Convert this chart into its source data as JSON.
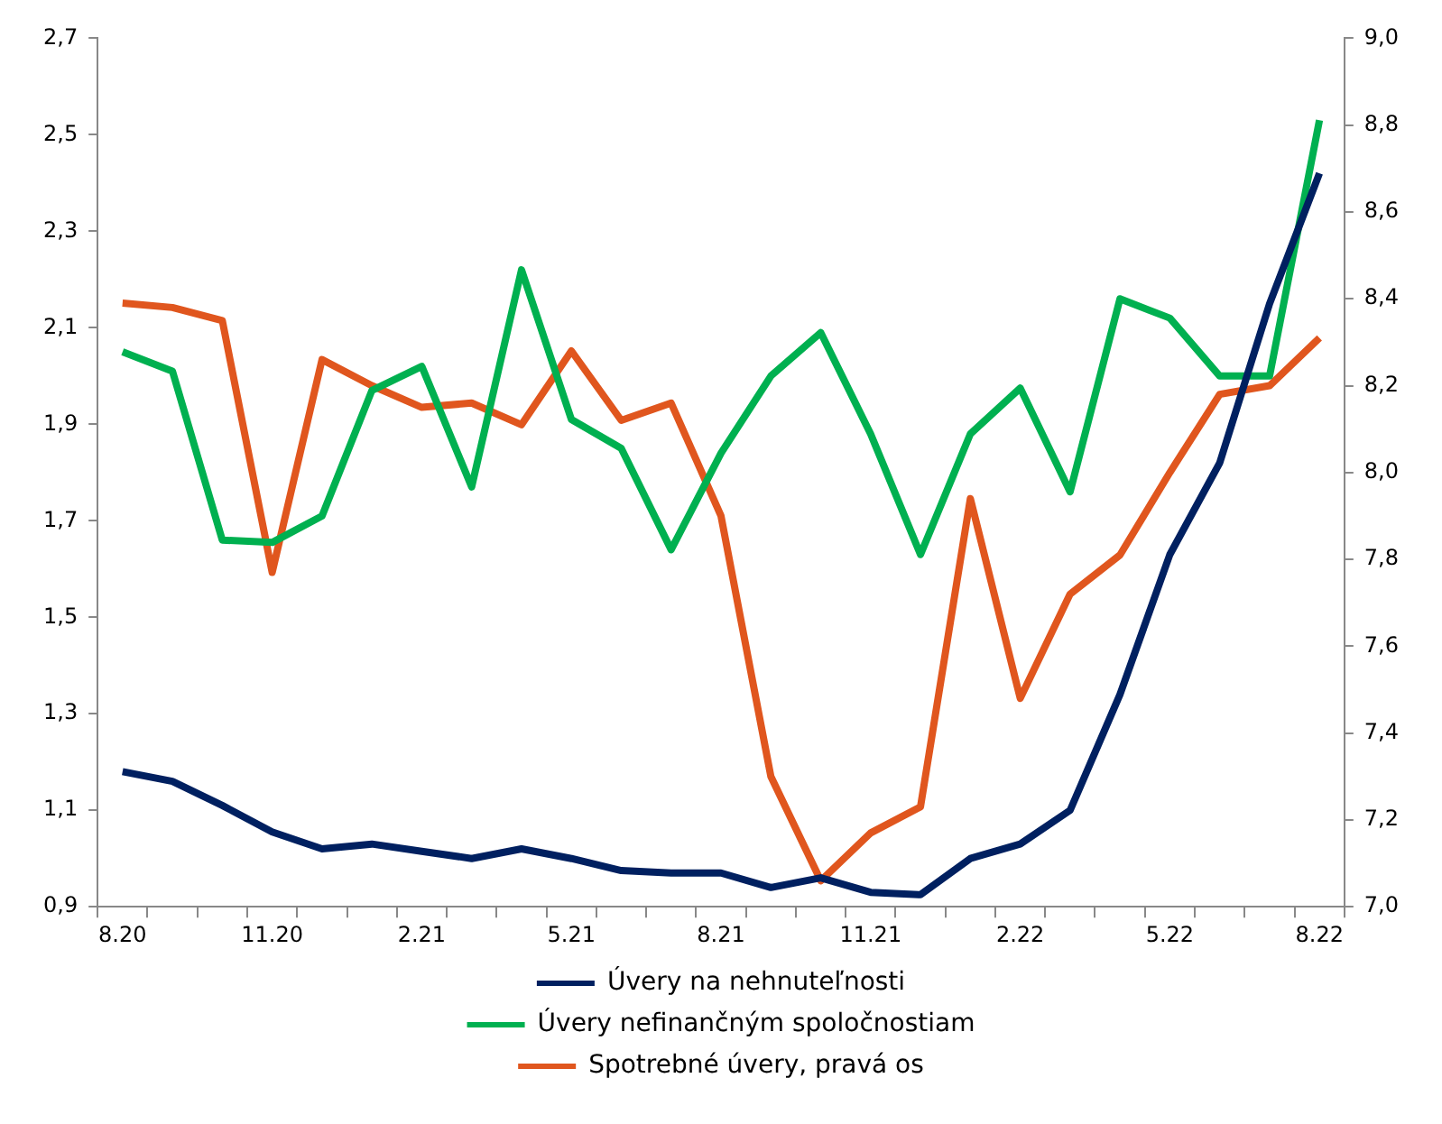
{
  "chart_data": {
    "type": "line",
    "categories": [
      "8.20",
      null,
      null,
      "11.20",
      null,
      null,
      "2.21",
      null,
      null,
      "5.21",
      null,
      null,
      "8.21",
      null,
      null,
      "11.21",
      null,
      null,
      "2.22",
      null,
      null,
      "5.22",
      null,
      null,
      "8.22"
    ],
    "series": [
      {
        "name": "Úvery na nehnuteľnosti",
        "color": "#002060",
        "values": [
          1.18,
          1.16,
          1.11,
          1.055,
          1.02,
          1.03,
          1.015,
          1.0,
          1.02,
          1.0,
          0.975,
          0.97,
          0.97,
          0.94,
          0.96,
          0.93,
          0.925,
          1.0,
          1.03,
          1.1,
          1.34,
          1.63,
          1.82,
          2.15,
          2.42
        ]
      },
      {
        "name": "Úvery nefinančným spoločnostiam",
        "color": "#00b050",
        "values": [
          2.05,
          2.01,
          1.66,
          1.655,
          1.71,
          1.97,
          2.02,
          1.77,
          2.22,
          1.91,
          1.85,
          1.64,
          1.84,
          2.0,
          2.09,
          1.88,
          1.63,
          1.88,
          1.975,
          1.76,
          2.16,
          2.12,
          2.0,
          2.0,
          2.53
        ]
      },
      {
        "name": "Spotrebné úvery, pravá os",
        "color": "#e0561e",
        "axis": "y2",
        "values": [
          8.39,
          8.38,
          8.35,
          7.77,
          8.26,
          8.2,
          8.15,
          8.16,
          8.11,
          8.28,
          8.12,
          8.16,
          7.9,
          7.3,
          7.06,
          7.17,
          7.23,
          7.94,
          7.48,
          7.72,
          7.81,
          8.0,
          8.18,
          8.2,
          8.31
        ]
      }
    ],
    "ylim": [
      0.9,
      2.7
    ],
    "yticks": [
      {
        "value": 0.9,
        "label": "0,9"
      },
      {
        "value": 1.1,
        "label": "1,1"
      },
      {
        "value": 1.3,
        "label": "1,3"
      },
      {
        "value": 1.5,
        "label": "1,5"
      },
      {
        "value": 1.7,
        "label": "1,7"
      },
      {
        "value": 1.9,
        "label": "1,9"
      },
      {
        "value": 2.1,
        "label": "2,1"
      },
      {
        "value": 2.3,
        "label": "2,3"
      },
      {
        "value": 2.5,
        "label": "2,5"
      },
      {
        "value": 2.7,
        "label": "2,7"
      }
    ],
    "y2lim": [
      7.0,
      9.0
    ],
    "y2ticks": [
      {
        "value": 7.0,
        "label": "7,0"
      },
      {
        "value": 7.2,
        "label": "7,2"
      },
      {
        "value": 7.4,
        "label": "7,4"
      },
      {
        "value": 7.6,
        "label": "7,6"
      },
      {
        "value": 7.8,
        "label": "7,8"
      },
      {
        "value": 8.0,
        "label": "8,0"
      },
      {
        "value": 8.2,
        "label": "8,2"
      },
      {
        "value": 8.4,
        "label": "8,4"
      },
      {
        "value": 8.6,
        "label": "8,6"
      },
      {
        "value": 8.8,
        "label": "8,8"
      },
      {
        "value": 9.0,
        "label": "9,0"
      }
    ],
    "legend": "bottom",
    "marker": "none",
    "line_style": "solid"
  }
}
